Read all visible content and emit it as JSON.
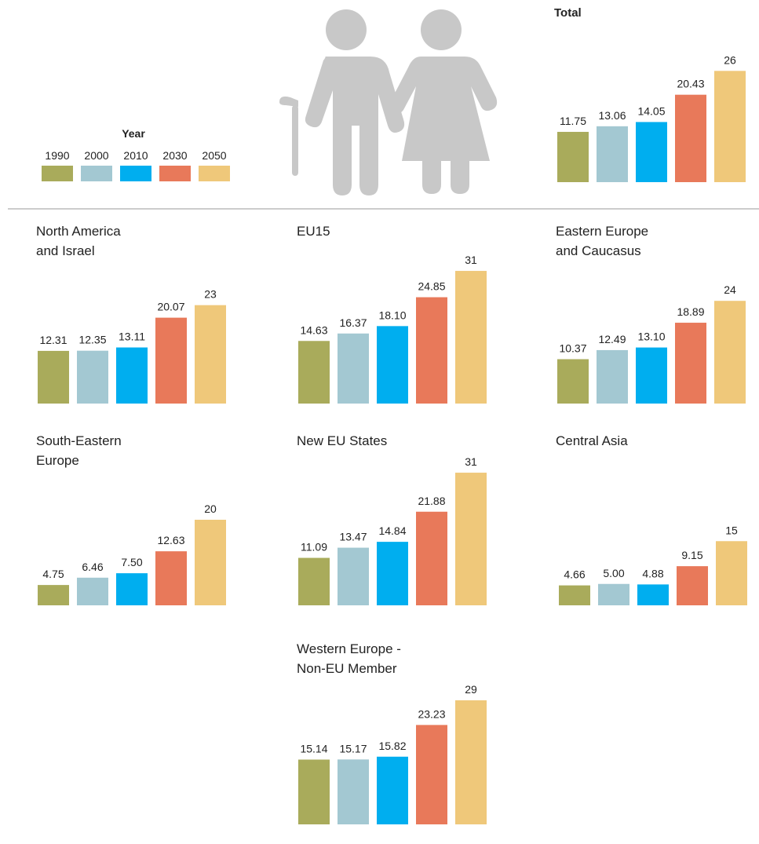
{
  "legend": {
    "title": "Year",
    "items": [
      {
        "name": "1990",
        "color": "#a9ab5b"
      },
      {
        "name": "2000",
        "color": "#a3c8d2"
      },
      {
        "name": "2010",
        "color": "#00aeef"
      },
      {
        "name": "2030",
        "color": "#e8795a"
      },
      {
        "name": "2050",
        "color": "#efc87a"
      }
    ]
  },
  "chart_data": [
    {
      "type": "bar",
      "title": "Total",
      "values": [
        11.75,
        13.06,
        14.05,
        20.43,
        26
      ]
    },
    {
      "type": "bar",
      "title": "North America\nand Israel",
      "values": [
        12.31,
        12.35,
        13.11,
        20.07,
        23
      ]
    },
    {
      "type": "bar",
      "title": "EU15",
      "values": [
        14.63,
        16.37,
        18.1,
        24.85,
        31
      ],
      "value_labels": [
        "14.63",
        "16.37",
        "18.10",
        "24.85",
        "31"
      ]
    },
    {
      "type": "bar",
      "title": "Eastern Europe\nand Caucasus",
      "values": [
        10.37,
        12.49,
        13.1,
        18.89,
        24
      ],
      "value_labels": [
        "10.37",
        "12.49",
        "13.10",
        "18.89",
        "24"
      ]
    },
    {
      "type": "bar",
      "title": "South-Eastern\nEurope",
      "values": [
        4.75,
        6.46,
        7.5,
        12.63,
        20
      ],
      "value_labels": [
        "4.75",
        "6.46",
        "7.50",
        "12.63",
        "20"
      ]
    },
    {
      "type": "bar",
      "title": "New EU States",
      "values": [
        11.09,
        13.47,
        14.84,
        21.88,
        31
      ]
    },
    {
      "type": "bar",
      "title": "Central Asia",
      "values": [
        4.66,
        5,
        4.88,
        9.15,
        15
      ],
      "value_labels": [
        "4.66",
        "5.00",
        "4.88",
        "9.15",
        "15"
      ]
    },
    {
      "type": "bar",
      "title": "Western Europe -\nNon-EU Member",
      "values": [
        15.14,
        15.17,
        15.82,
        23.23,
        29
      ]
    }
  ]
}
